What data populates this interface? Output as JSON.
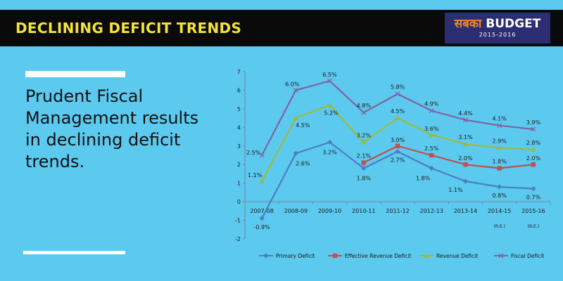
{
  "header": {
    "title": "DECLINING DEFICIT TRENDS"
  },
  "logo": {
    "hindi": "सबका",
    "english": "BUDGET",
    "years": "2015-2016"
  },
  "headline": "Prudent Fiscal Management results in declining deficit trends.",
  "colors": {
    "background": "#5cc9ef",
    "header_bg": "#0a0a0a",
    "header_text": "#f2e33a",
    "logo_bg": "#2c2d72",
    "logo_orange": "#f08a24"
  },
  "chart_data": {
    "type": "line",
    "categories": [
      "2007-08",
      "2008-09",
      "2009-10",
      "2010-11",
      "2011-12",
      "2012-13",
      "2013-14",
      "2014-15",
      "2015-16"
    ],
    "category_notes": [
      "",
      "",
      "",
      "",
      "",
      "",
      "",
      "(R.E.)",
      "(B.E.)"
    ],
    "ylim": [
      -2,
      7
    ],
    "yticks": [
      -2,
      -1,
      0,
      1,
      2,
      3,
      4,
      5,
      6,
      7
    ],
    "grid": false,
    "legend_position": "bottom",
    "series": [
      {
        "name": "Primary Deficit",
        "color": "#4a7fc1",
        "marker": "diamond",
        "values": [
          -0.9,
          2.6,
          3.2,
          1.8,
          2.7,
          1.8,
          1.1,
          0.8,
          0.7
        ],
        "labels": [
          "-0.9%",
          "2.6%",
          "3.2%",
          "1.8%",
          "2.7%",
          "1.8%",
          "1.1%",
          "0.8%",
          "0.7%"
        ]
      },
      {
        "name": "Effective Revenue Deficit",
        "color": "#c0504d",
        "marker": "square",
        "values": [
          null,
          null,
          null,
          2.1,
          3.0,
          2.5,
          2.0,
          1.8,
          2.0
        ],
        "labels": [
          null,
          null,
          null,
          "2.1%",
          "3.0%",
          "2.5%",
          "2.0%",
          "1.8%",
          "2.0%"
        ]
      },
      {
        "name": "Revenue Deficit",
        "color": "#9bbb3b",
        "marker": "triangle",
        "values": [
          1.1,
          4.5,
          5.2,
          3.2,
          4.5,
          3.6,
          3.1,
          2.9,
          2.8
        ],
        "labels": [
          "1.1%",
          "4.5%",
          "5.2%",
          "3.2%",
          "4.5%",
          "3.6%",
          "3.1%",
          "2.9%",
          "2.8%"
        ]
      },
      {
        "name": "Fiscal Deficit",
        "color": "#8064a2",
        "marker": "x",
        "values": [
          2.5,
          6.0,
          6.5,
          4.8,
          5.8,
          4.9,
          4.4,
          4.1,
          3.9
        ],
        "labels": [
          "2.5%",
          "6.0%",
          "6.5%",
          "4.8%",
          "5.8%",
          "4.9%",
          "4.4%",
          "4.1%",
          "3.9%"
        ]
      }
    ]
  }
}
